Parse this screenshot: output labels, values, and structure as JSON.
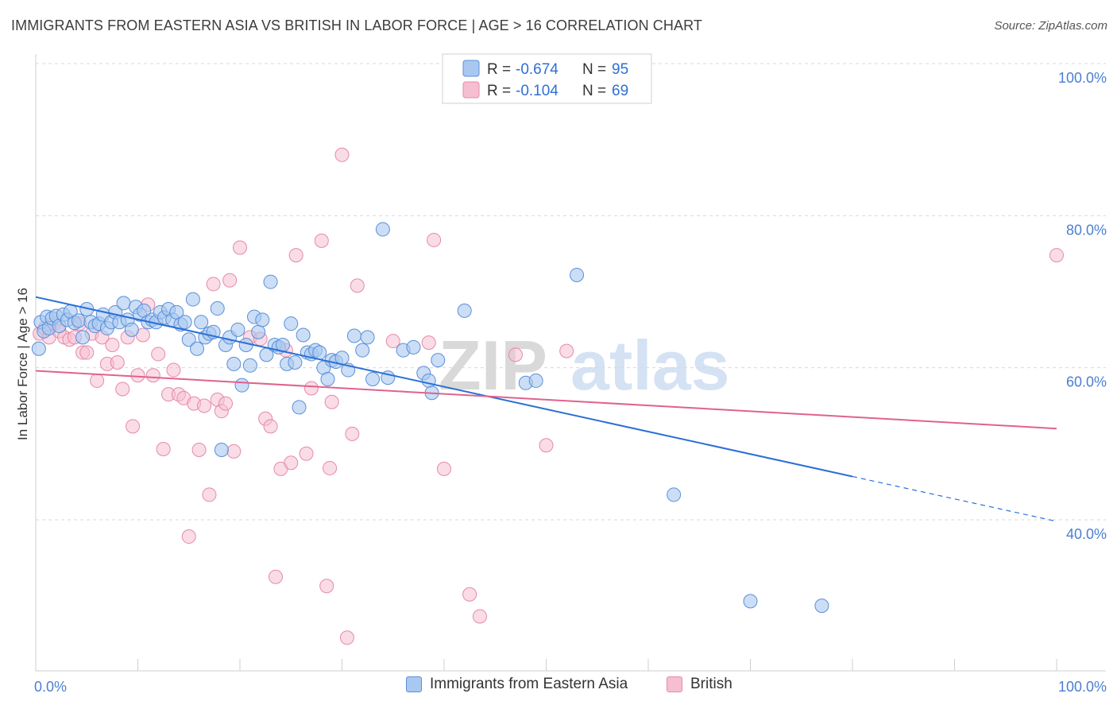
{
  "title": "IMMIGRANTS FROM EASTERN ASIA VS BRITISH IN LABOR FORCE | AGE > 16 CORRELATION CHART",
  "source": "Source: ZipAtlas.com",
  "watermark": {
    "zip": "ZIP",
    "atlas": "atlas"
  },
  "colors": {
    "blue_fill": "#a9c8f0",
    "blue_stroke": "#5a8fd8",
    "blue_line": "#2a6fd6",
    "pink_fill": "#f6bfd1",
    "pink_stroke": "#e58aa8",
    "pink_line": "#e0628d",
    "axis_text": "#4a7fd1",
    "grid": "#d8d8d8"
  },
  "legend": {
    "r_label": "R =",
    "n_label": "N =",
    "items": [
      {
        "r": "-0.674",
        "n": "95"
      },
      {
        "r": "-0.104",
        "n": "69"
      }
    ]
  },
  "chart_data": {
    "type": "scatter",
    "title": "IMMIGRANTS FROM EASTERN ASIA VS BRITISH IN LABOR FORCE | AGE > 16 CORRELATION CHART",
    "xlabel": "",
    "ylabel": "In Labor Force | Age > 16",
    "xlim": [
      0,
      100
    ],
    "ylim": [
      20,
      102
    ],
    "x_tick_labels": [
      "0.0%",
      "100.0%"
    ],
    "y_ticks": [
      40,
      60,
      80,
      100
    ],
    "y_tick_labels": [
      "40.0%",
      "60.0%",
      "80.0%",
      "100.0%"
    ],
    "grid": true,
    "legend_position": "top-center",
    "series": [
      {
        "name": "Immigrants from Eastern Asia",
        "color": "#a9c8f0",
        "trend": {
          "x": [
            0,
            80
          ],
          "y": [
            69.3,
            45.7
          ],
          "dashed_to": [
            100,
            39.8
          ]
        },
        "points": [
          [
            0.3,
            62.5
          ],
          [
            0.5,
            66.0
          ],
          [
            0.8,
            64.8
          ],
          [
            1.1,
            66.7
          ],
          [
            1.3,
            65.2
          ],
          [
            1.6,
            66.5
          ],
          [
            2.0,
            66.8
          ],
          [
            2.3,
            65.5
          ],
          [
            2.7,
            67.0
          ],
          [
            3.1,
            66.3
          ],
          [
            3.4,
            67.4
          ],
          [
            3.8,
            65.9
          ],
          [
            4.2,
            66.2
          ],
          [
            4.6,
            64.0
          ],
          [
            5.0,
            67.7
          ],
          [
            5.4,
            66.0
          ],
          [
            5.8,
            65.5
          ],
          [
            6.2,
            65.8
          ],
          [
            6.6,
            67.0
          ],
          [
            7.0,
            65.2
          ],
          [
            7.4,
            66.0
          ],
          [
            7.8,
            67.3
          ],
          [
            8.2,
            66.0
          ],
          [
            8.6,
            68.5
          ],
          [
            9.0,
            66.3
          ],
          [
            9.4,
            65.0
          ],
          [
            9.8,
            68.0
          ],
          [
            10.2,
            67.0
          ],
          [
            10.6,
            67.5
          ],
          [
            11.0,
            66.0
          ],
          [
            11.4,
            66.3
          ],
          [
            11.8,
            66.0
          ],
          [
            12.2,
            67.3
          ],
          [
            12.6,
            66.6
          ],
          [
            13.0,
            67.7
          ],
          [
            13.4,
            66.3
          ],
          [
            13.8,
            67.3
          ],
          [
            14.2,
            65.7
          ],
          [
            14.6,
            66.0
          ],
          [
            15.0,
            63.7
          ],
          [
            15.4,
            69.0
          ],
          [
            15.8,
            62.5
          ],
          [
            16.2,
            66.0
          ],
          [
            16.6,
            64.0
          ],
          [
            17.0,
            64.5
          ],
          [
            17.4,
            64.7
          ],
          [
            17.8,
            67.8
          ],
          [
            18.2,
            49.2
          ],
          [
            18.6,
            63.0
          ],
          [
            19.0,
            64.0
          ],
          [
            19.4,
            60.5
          ],
          [
            19.8,
            65.0
          ],
          [
            20.2,
            57.7
          ],
          [
            20.6,
            63.0
          ],
          [
            21.0,
            60.3
          ],
          [
            21.4,
            66.7
          ],
          [
            21.8,
            64.7
          ],
          [
            22.2,
            66.3
          ],
          [
            22.6,
            61.7
          ],
          [
            23.0,
            71.3
          ],
          [
            23.4,
            63.0
          ],
          [
            23.8,
            62.7
          ],
          [
            24.2,
            63.0
          ],
          [
            24.6,
            60.5
          ],
          [
            25.0,
            65.8
          ],
          [
            25.4,
            60.7
          ],
          [
            25.8,
            54.8
          ],
          [
            26.2,
            64.3
          ],
          [
            26.6,
            62.0
          ],
          [
            27.0,
            61.8
          ],
          [
            27.4,
            62.3
          ],
          [
            27.8,
            62.0
          ],
          [
            28.2,
            60.0
          ],
          [
            28.6,
            58.5
          ],
          [
            29.0,
            61.0
          ],
          [
            29.4,
            60.8
          ],
          [
            30.0,
            61.3
          ],
          [
            30.6,
            59.7
          ],
          [
            31.2,
            64.2
          ],
          [
            32.0,
            62.3
          ],
          [
            32.5,
            64.0
          ],
          [
            33.0,
            58.5
          ],
          [
            34.0,
            78.2
          ],
          [
            34.5,
            58.7
          ],
          [
            36.0,
            62.3
          ],
          [
            37.0,
            62.7
          ],
          [
            38.0,
            59.3
          ],
          [
            38.5,
            58.3
          ],
          [
            38.8,
            56.7
          ],
          [
            39.4,
            61.0
          ],
          [
            42.0,
            67.5
          ],
          [
            48.0,
            58.0
          ],
          [
            49.0,
            58.3
          ],
          [
            53.0,
            72.2
          ],
          [
            62.5,
            43.3
          ],
          [
            70.0,
            29.3
          ],
          [
            77.0,
            28.7
          ]
        ]
      },
      {
        "name": "British",
        "color": "#f6bfd1",
        "trend": {
          "x": [
            0,
            100
          ],
          "y": [
            59.6,
            52.0
          ]
        },
        "points": [
          [
            0.4,
            64.5
          ],
          [
            0.9,
            65.2
          ],
          [
            1.3,
            64.0
          ],
          [
            1.8,
            65.8
          ],
          [
            2.3,
            64.8
          ],
          [
            2.8,
            64.0
          ],
          [
            3.3,
            63.7
          ],
          [
            3.8,
            64.0
          ],
          [
            4.3,
            65.8
          ],
          [
            4.6,
            62.0
          ],
          [
            5.0,
            62.0
          ],
          [
            5.5,
            64.5
          ],
          [
            6.0,
            58.3
          ],
          [
            6.5,
            64.0
          ],
          [
            7.0,
            60.5
          ],
          [
            7.5,
            63.0
          ],
          [
            8.0,
            60.7
          ],
          [
            8.5,
            57.2
          ],
          [
            9.0,
            64.0
          ],
          [
            9.5,
            52.3
          ],
          [
            10.0,
            59.0
          ],
          [
            10.5,
            64.3
          ],
          [
            11.0,
            68.3
          ],
          [
            11.5,
            59.0
          ],
          [
            12.0,
            61.8
          ],
          [
            12.5,
            49.3
          ],
          [
            13.0,
            56.5
          ],
          [
            13.5,
            59.7
          ],
          [
            14.0,
            56.5
          ],
          [
            14.5,
            56.0
          ],
          [
            15.0,
            37.8
          ],
          [
            15.5,
            55.3
          ],
          [
            16.0,
            49.2
          ],
          [
            16.5,
            55.0
          ],
          [
            17.0,
            43.3
          ],
          [
            17.4,
            71.0
          ],
          [
            17.8,
            55.8
          ],
          [
            18.2,
            54.3
          ],
          [
            18.6,
            55.3
          ],
          [
            19.0,
            71.5
          ],
          [
            19.4,
            49.0
          ],
          [
            20.0,
            75.8
          ],
          [
            21.0,
            64.0
          ],
          [
            22.0,
            63.8
          ],
          [
            22.5,
            53.3
          ],
          [
            23.0,
            52.3
          ],
          [
            23.5,
            32.5
          ],
          [
            24.0,
            46.7
          ],
          [
            24.5,
            62.3
          ],
          [
            25.0,
            47.5
          ],
          [
            25.5,
            74.8
          ],
          [
            26.5,
            48.7
          ],
          [
            27.0,
            57.3
          ],
          [
            28.0,
            76.7
          ],
          [
            28.5,
            31.3
          ],
          [
            28.8,
            46.8
          ],
          [
            29.0,
            55.5
          ],
          [
            30.0,
            88.0
          ],
          [
            30.5,
            24.5
          ],
          [
            31.0,
            51.3
          ],
          [
            31.5,
            70.8
          ],
          [
            35.0,
            63.5
          ],
          [
            38.5,
            63.3
          ],
          [
            39.0,
            76.8
          ],
          [
            40.0,
            46.7
          ],
          [
            42.5,
            30.2
          ],
          [
            43.5,
            27.3
          ],
          [
            47.0,
            61.7
          ],
          [
            50.0,
            49.8
          ],
          [
            52.0,
            62.2
          ],
          [
            100.0,
            74.8
          ]
        ]
      }
    ]
  }
}
